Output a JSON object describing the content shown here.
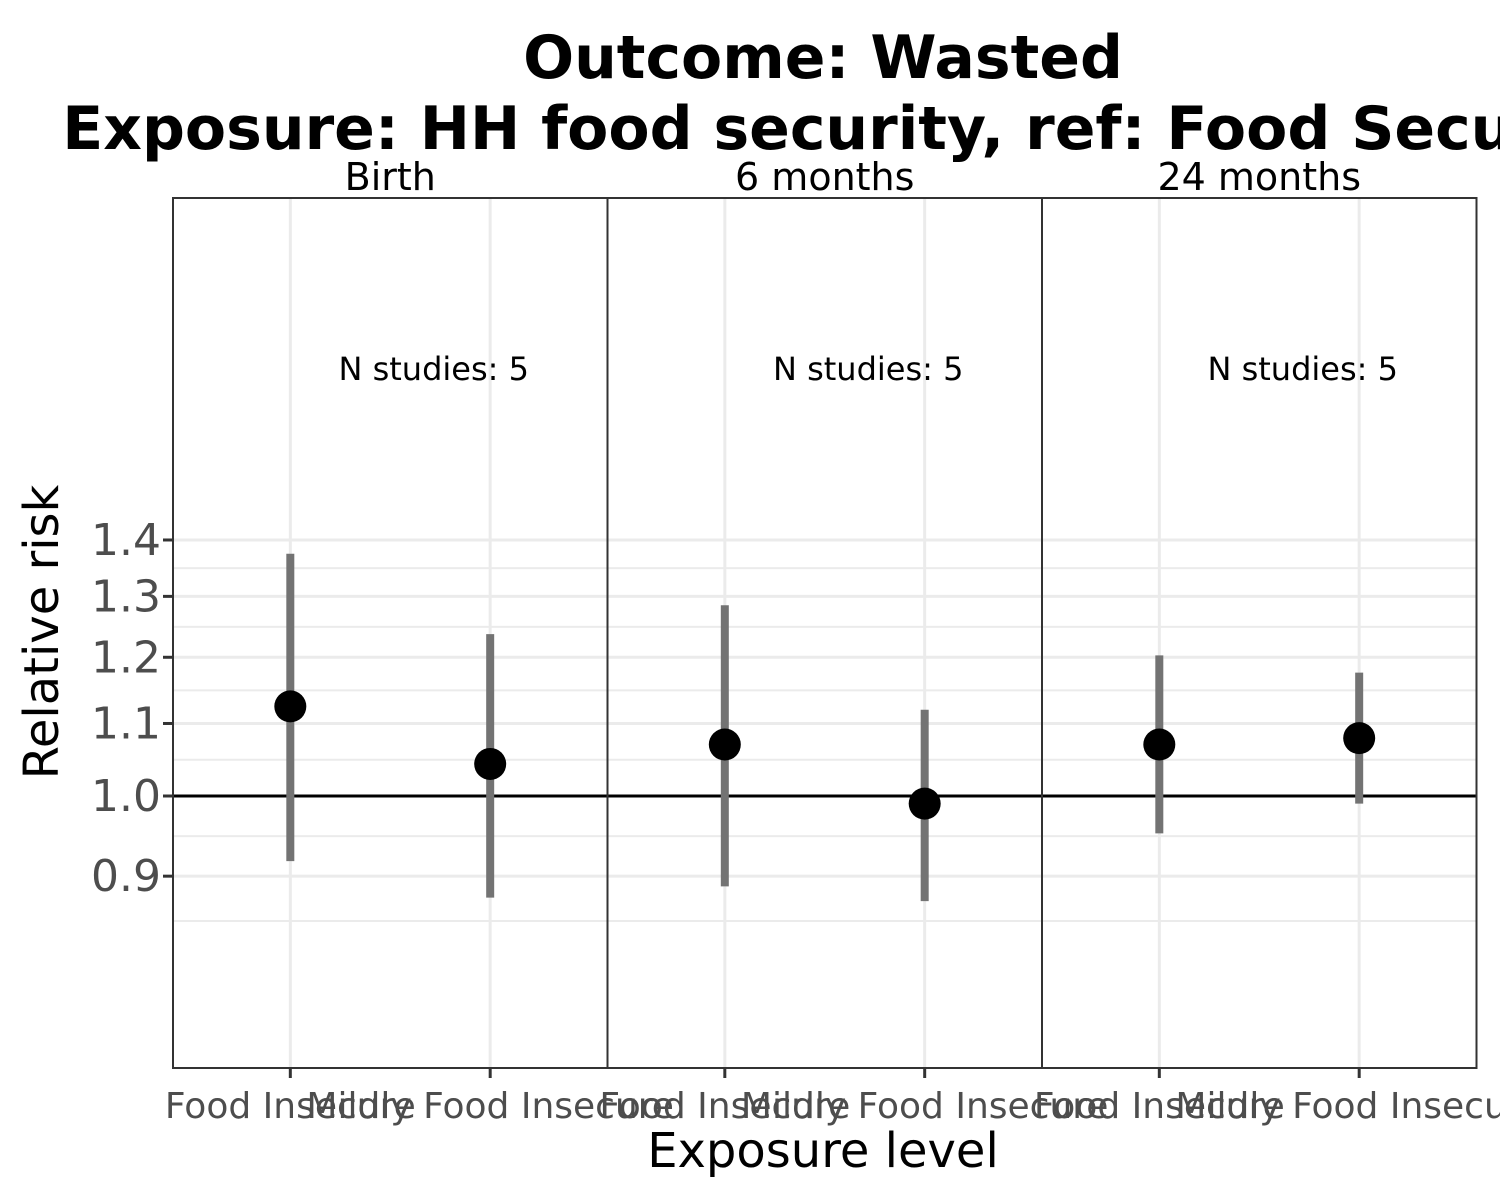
{
  "chart_data": {
    "type": "scatter",
    "title": "Outcome: Wasted",
    "subtitle": "Exposure: HH food security, ref: Food Secure",
    "xlabel": "Exposure level",
    "ylabel": "Relative risk",
    "y_scale": "log",
    "ylim": [
      0.855,
      1.41
    ],
    "yticks": [
      0.9,
      1.0,
      1.1,
      1.2,
      1.3,
      1.4
    ],
    "ytick_labels": [
      "0.9",
      "1.0",
      "1.1",
      "1.2",
      "1.3",
      "1.4"
    ],
    "reference_line": 1.0,
    "grid": true,
    "categories": [
      "Food Insecure",
      "Mildly Food Insecure"
    ],
    "panels": [
      {
        "label": "Birth",
        "annotation": "N studies: 5",
        "points": [
          {
            "category": "Food Insecure",
            "rr": 1.125,
            "ci_lower": 0.918,
            "ci_upper": 1.375
          },
          {
            "category": "Mildly Food Insecure",
            "rr": 1.043,
            "ci_lower": 0.875,
            "ci_upper": 1.237
          }
        ]
      },
      {
        "label": "6 months",
        "annotation": "N studies: 5",
        "points": [
          {
            "category": "Food Insecure",
            "rr": 1.07,
            "ci_lower": 0.888,
            "ci_upper": 1.285
          },
          {
            "category": "Mildly Food Insecure",
            "rr": 0.99,
            "ci_lower": 0.871,
            "ci_upper": 1.12
          }
        ]
      },
      {
        "label": "24 months",
        "annotation": "N studies: 5",
        "points": [
          {
            "category": "Food Insecure",
            "rr": 1.07,
            "ci_lower": 0.952,
            "ci_upper": 1.203
          },
          {
            "category": "Mildly Food Insecure",
            "rr": 1.079,
            "ci_lower": 0.99,
            "ci_upper": 1.176
          }
        ]
      }
    ],
    "colors": {
      "point": "#000000",
      "ci_line": "#737373",
      "reference_line": "#000000",
      "grid": "#ebebeb",
      "panel_border": "#333333"
    }
  }
}
